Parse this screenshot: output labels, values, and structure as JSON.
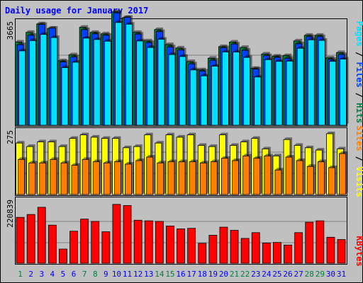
{
  "chart_data": {
    "type": "bar",
    "title": "Daily usage for January 2017",
    "x": [
      "1",
      "2",
      "3",
      "4",
      "5",
      "6",
      "7",
      "8",
      "9",
      "10",
      "11",
      "12",
      "13",
      "14",
      "15",
      "16",
      "17",
      "18",
      "19",
      "20",
      "21",
      "22",
      "23",
      "24",
      "25",
      "26",
      "27",
      "28",
      "29",
      "30",
      "31"
    ],
    "weekend_days": [
      1,
      7,
      8,
      14,
      15,
      21,
      22,
      28,
      29
    ],
    "panels": [
      {
        "name": "hits-files-pages",
        "max_label": "3665",
        "ymax": 3665,
        "series": [
          {
            "name": "Hits",
            "color": "#008040",
            "values": [
              2930,
              3270,
              3570,
              3410,
              2270,
              2480,
              3450,
              3270,
              3220,
              3990,
              3790,
              3270,
              2970,
              3370,
              2840,
              2720,
              2240,
              1950,
              2360,
              2770,
              2930,
              2740,
              2000,
              2510,
              2430,
              2450,
              2970,
              3170,
              3170,
              2370,
              2560
            ]
          },
          {
            "name": "Files",
            "color": "#0040ff",
            "values": [
              2840,
              3170,
              3550,
              3420,
              2230,
              2410,
              3370,
              3220,
              3170,
              3960,
              3800,
              3210,
              2910,
              3300,
              2760,
              2650,
              2160,
              1910,
              2290,
              2730,
              2860,
              2640,
              1980,
              2450,
              2390,
              2360,
              2870,
              3120,
              3120,
              2320,
              2490
            ]
          },
          {
            "name": "Pages",
            "color": "#00e0ff",
            "values": [
              2620,
              2980,
              3200,
              3090,
              2030,
              2220,
              3070,
              3020,
              2960,
              3620,
              3560,
              2970,
              2740,
              3030,
              2490,
              2420,
              1950,
              1740,
              2080,
              2580,
              2580,
              2390,
              1700,
              2310,
              2250,
              2260,
              2710,
              3010,
              2990,
              2250,
              2330
            ]
          }
        ]
      },
      {
        "name": "visits-sites",
        "max_label": "275",
        "ymax": 275,
        "series": [
          {
            "name": "Visits",
            "color": "#ffff00",
            "values": [
              220,
              205,
              225,
              225,
              205,
              240,
              255,
              245,
              240,
              240,
              200,
              205,
              255,
              220,
              255,
              245,
              255,
              210,
              205,
              255,
              210,
              225,
              240,
              195,
              165,
              235,
              210,
              200,
              190,
              260,
              195
            ]
          },
          {
            "name": "Sites",
            "color": "#ff8000",
            "values": [
              150,
              135,
              135,
              150,
              135,
              125,
              150,
              140,
              135,
              140,
              130,
              145,
              160,
              135,
              140,
              140,
              140,
              135,
              140,
              155,
              145,
              165,
              155,
              165,
              105,
              160,
              145,
              120,
              140,
              115,
              175
            ]
          }
        ]
      },
      {
        "name": "kbytes",
        "max_label": "220839",
        "ymax": 220839,
        "series": [
          {
            "name": "KBytes",
            "color": "#ff0000",
            "values": [
              159000,
              169000,
              194000,
              132000,
              49000,
              111000,
              153000,
              145000,
              109000,
              204000,
              200000,
              149000,
              147000,
              145000,
              129000,
              119000,
              121000,
              69000,
              97000,
              125000,
              114000,
              86000,
              106000,
              70000,
              72000,
              63000,
              106000,
              142000,
              147000,
              90000,
              82000
            ]
          }
        ]
      }
    ],
    "side_labels": {
      "top": [
        {
          "text": "Pages",
          "color": "#00e0ff"
        },
        {
          "text": " / ",
          "color": "#000000"
        },
        {
          "text": "Files",
          "color": "#0040ff"
        },
        {
          "text": " / ",
          "color": "#000000"
        },
        {
          "text": "Hits",
          "color": "#008040"
        }
      ],
      "middle": [
        {
          "text": "Sites",
          "color": "#ff8000"
        },
        {
          "text": " / ",
          "color": "#000000"
        },
        {
          "text": "Visits",
          "color": "#ffff00"
        }
      ],
      "bottom": [
        {
          "text": "KBytes",
          "color": "#ff0000"
        }
      ]
    },
    "colors": {
      "background": "#c0c0c0",
      "title": "#0000ff",
      "weekday_tick": "#0000ff",
      "weekend_tick": "#008040",
      "gridline": "#808080"
    }
  }
}
